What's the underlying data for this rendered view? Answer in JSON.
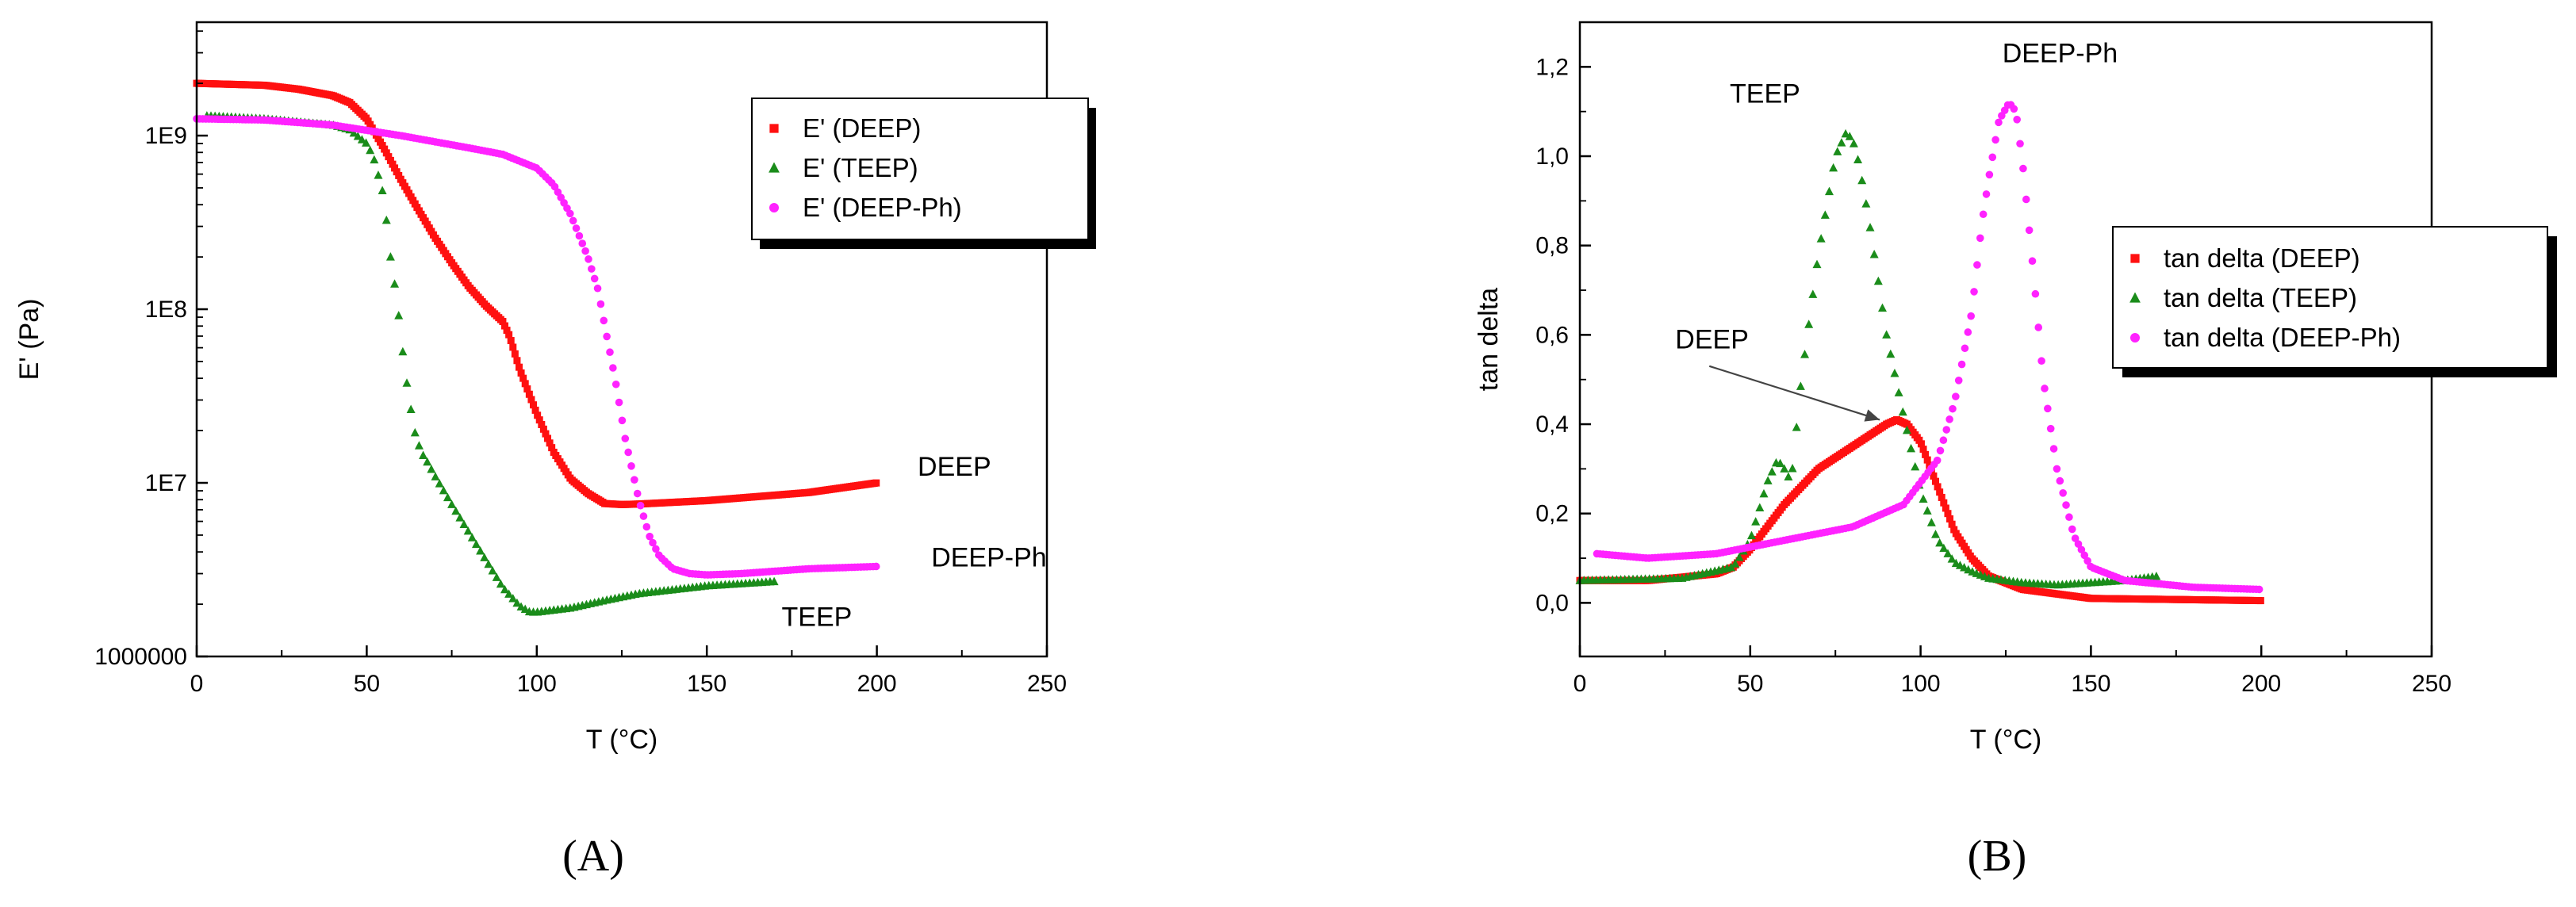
{
  "figure": {
    "panel_a_label": "(A)",
    "panel_b_label": "(B)"
  },
  "colors": {
    "DEEP": "#ff1010",
    "TEEP": "#1a8c1a",
    "DEEP-Ph": "#ff22ff"
  },
  "chart_data": [
    {
      "type": "scatter",
      "panel": "A",
      "title": "",
      "xlabel": "T (°C)",
      "ylabel": "E' (Pa)",
      "xlim": [
        0,
        250
      ],
      "yscale": "log",
      "ylim": [
        1000000,
        4500000000
      ],
      "x_ticks": [
        "0",
        "50",
        "100",
        "150",
        "200",
        "250"
      ],
      "y_ticks": [
        {
          "value": 1000000,
          "label": "1000000"
        },
        {
          "value": 10000000,
          "label": "1E7"
        },
        {
          "value": 100000000,
          "label": "1E8"
        },
        {
          "value": 1000000000,
          "label": "1E9"
        }
      ],
      "legend": {
        "placement": "top-right",
        "entries": [
          "E' (DEEP)",
          "E' (TEEP)",
          "E' (DEEP-Ph)"
        ]
      },
      "series": [
        {
          "name": "E' (DEEP)",
          "marker": "square",
          "color_key": "DEEP",
          "x_step": 0.6,
          "x": [
            0,
            20,
            30,
            40,
            45,
            50,
            55,
            60,
            65,
            70,
            75,
            80,
            85,
            90,
            92,
            95,
            100,
            105,
            110,
            115,
            120,
            125,
            130,
            150,
            180,
            200
          ],
          "values": [
            2000000000,
            1950000000,
            1850000000,
            1700000000,
            1550000000,
            1250000000,
            850000000,
            560000000,
            380000000,
            260000000,
            185000000,
            135000000,
            105000000,
            85000000,
            70000000,
            45000000,
            25000000,
            15000000,
            10500000,
            8700000,
            7600000,
            7500000,
            7550000,
            7900000,
            8800000,
            10000000
          ]
        },
        {
          "name": "E' (TEEP)",
          "marker": "triangle",
          "color_key": "TEEP",
          "x_step": 1.2,
          "x": [
            3,
            20,
            40,
            45,
            50,
            52,
            55,
            57,
            59,
            60,
            62,
            64,
            66,
            68,
            70,
            75,
            80,
            85,
            90,
            95,
            98,
            100,
            110,
            120,
            130,
            150,
            170
          ],
          "values": [
            1300000000,
            1250000000,
            1150000000,
            1080000000,
            900000000,
            750000000,
            450000000,
            200000000,
            110000000,
            70000000,
            35000000,
            20000000,
            15000000,
            13000000,
            11000000,
            7500000,
            5200000,
            3600000,
            2500000,
            1950000,
            1800000,
            1800000,
            1900000,
            2100000,
            2300000,
            2550000,
            2700000
          ]
        },
        {
          "name": "E' (DEEP-Ph)",
          "marker": "circle",
          "color_key": "DEEP-Ph",
          "x_step": 0.9,
          "x": [
            0,
            20,
            40,
            60,
            80,
            90,
            100,
            105,
            110,
            115,
            118,
            120,
            123,
            126,
            130,
            133,
            136,
            140,
            145,
            150,
            160,
            180,
            200
          ],
          "values": [
            1250000000,
            1230000000,
            1150000000,
            1000000000,
            850000000,
            780000000,
            650000000,
            520000000,
            350000000,
            200000000,
            130000000,
            80000000,
            40000000,
            18000000,
            8000000,
            5000000,
            3800000,
            3200000,
            3000000,
            2950000,
            3000000,
            3200000,
            3300000
          ]
        }
      ],
      "annotations": [
        {
          "text": "DEEP",
          "x": 212,
          "y": 11000000
        },
        {
          "text": "DEEP-Ph",
          "x": 216,
          "y": 3300000
        },
        {
          "text": "TEEP",
          "x": 172,
          "y": 1500000
        }
      ]
    },
    {
      "type": "scatter",
      "panel": "B",
      "title": "",
      "xlabel": "T (°C)",
      "ylabel": "tan delta",
      "xlim": [
        0,
        250
      ],
      "ylim": [
        -0.12,
        1.3
      ],
      "x_ticks": [
        "0",
        "50",
        "100",
        "150",
        "200",
        "250"
      ],
      "y_ticks": [
        "0,0",
        "0,2",
        "0,4",
        "0,6",
        "0,8",
        "1,0",
        "1,2"
      ],
      "legend": {
        "placement": "right",
        "entries": [
          "tan delta (DEEP)",
          "tan delta (TEEP)",
          "tan delta (DEEP-Ph)"
        ]
      },
      "series": [
        {
          "name": "tan delta (DEEP)",
          "marker": "square",
          "color_key": "DEEP",
          "x_step": 0.6,
          "x": [
            0,
            20,
            40,
            45,
            50,
            55,
            60,
            65,
            70,
            80,
            90,
            93,
            96,
            100,
            103,
            106,
            110,
            115,
            120,
            130,
            150,
            200
          ],
          "values": [
            0.05,
            0.05,
            0.065,
            0.08,
            0.12,
            0.17,
            0.22,
            0.26,
            0.3,
            0.35,
            0.4,
            0.41,
            0.4,
            0.36,
            0.3,
            0.24,
            0.16,
            0.1,
            0.06,
            0.03,
            0.01,
            0.005
          ]
        },
        {
          "name": "tan delta (TEEP)",
          "marker": "triangle",
          "color_key": "TEEP",
          "x_step": 1.2,
          "x": [
            0,
            30,
            45,
            50,
            55,
            58,
            60,
            62,
            65,
            70,
            75,
            78,
            80,
            82,
            85,
            90,
            95,
            100,
            105,
            110,
            115,
            120,
            130,
            140,
            150,
            160,
            170
          ],
          "values": [
            0.05,
            0.055,
            0.08,
            0.14,
            0.27,
            0.32,
            0.3,
            0.27,
            0.5,
            0.78,
            1.0,
            1.05,
            1.04,
            0.98,
            0.85,
            0.6,
            0.42,
            0.25,
            0.14,
            0.09,
            0.07,
            0.055,
            0.045,
            0.04,
            0.045,
            0.05,
            0.06
          ]
        },
        {
          "name": "tan delta (DEEP-Ph)",
          "marker": "circle",
          "color_key": "DEEP-Ph",
          "x_step": 0.9,
          "x": [
            5,
            20,
            40,
            60,
            80,
            95,
            105,
            110,
            115,
            118,
            120,
            123,
            126,
            128,
            130,
            133,
            136,
            140,
            145,
            150,
            160,
            180,
            200
          ],
          "values": [
            0.11,
            0.1,
            0.11,
            0.14,
            0.17,
            0.22,
            0.32,
            0.45,
            0.65,
            0.85,
            0.95,
            1.08,
            1.12,
            1.1,
            0.98,
            0.75,
            0.5,
            0.3,
            0.15,
            0.08,
            0.05,
            0.035,
            0.03
          ]
        }
      ],
      "annotations": [
        {
          "text": "TEEP",
          "x": 44,
          "y": 1.12
        },
        {
          "text": "DEEP-Ph",
          "x": 124,
          "y": 1.21
        },
        {
          "text": "DEEP",
          "x": 28,
          "y": 0.57
        }
      ]
    }
  ]
}
